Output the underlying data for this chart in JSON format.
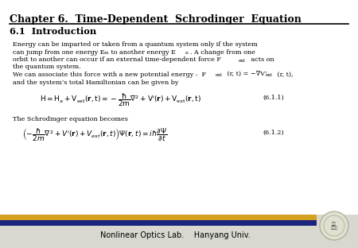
{
  "title": "Chapter 6.  Time-Dependent  Schrodinger  Equation",
  "section": "6.1  Introduction",
  "eq1_label": "(6.1.1)",
  "eq2_label": "(6.1.2)",
  "schrodinger_text": "The Schrodinger equation becomes",
  "footer_text": "Nonlinear Optics Lab.    Hanyang Univ.",
  "bg_color": "#f0f0e8",
  "white_color": "#ffffff",
  "title_color": "#000000",
  "footer_bar_gold": "#d4a020",
  "footer_bar_navy": "#1a237e",
  "footer_bg": "#d8d8d0",
  "title_fontsize": 9.0,
  "section_fontsize": 8.2,
  "body_fontsize": 5.8,
  "eq_fontsize": 6.5,
  "footer_fontsize": 7.0
}
